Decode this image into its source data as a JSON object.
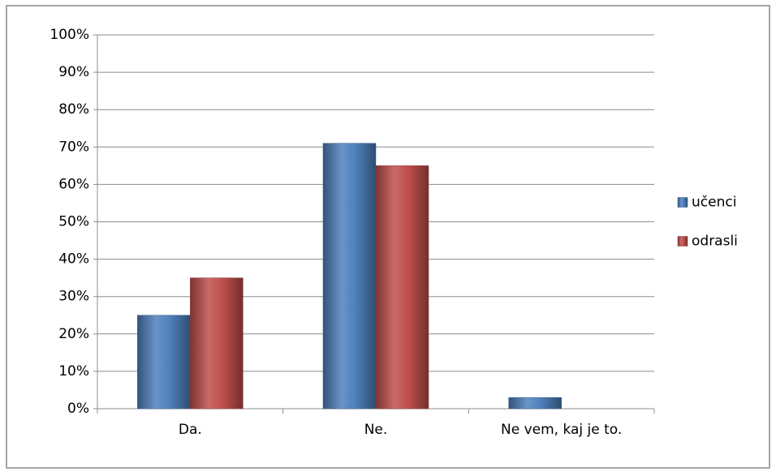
{
  "chart_data": {
    "type": "bar",
    "categories": [
      "Da.",
      "Ne.",
      "Ne vem, kaj je to."
    ],
    "series": [
      {
        "name": "učenci",
        "color": "#4f81bd",
        "values": [
          25,
          71,
          3
        ]
      },
      {
        "name": "odrasli",
        "color": "#c0504d",
        "values": [
          35,
          65,
          0
        ]
      }
    ],
    "ylim": [
      0,
      100
    ],
    "yticks": [
      {
        "value": 0,
        "label": "0%"
      },
      {
        "value": 10,
        "label": "10%"
      },
      {
        "value": 20,
        "label": "20%"
      },
      {
        "value": 30,
        "label": "30%"
      },
      {
        "value": 40,
        "label": "40%"
      },
      {
        "value": 50,
        "label": "50%"
      },
      {
        "value": 60,
        "label": "60%"
      },
      {
        "value": 70,
        "label": "70%"
      },
      {
        "value": 80,
        "label": "80%"
      },
      {
        "value": 90,
        "label": "90%"
      },
      {
        "value": 100,
        "label": "100%"
      }
    ],
    "grid": true,
    "legend": "right"
  }
}
